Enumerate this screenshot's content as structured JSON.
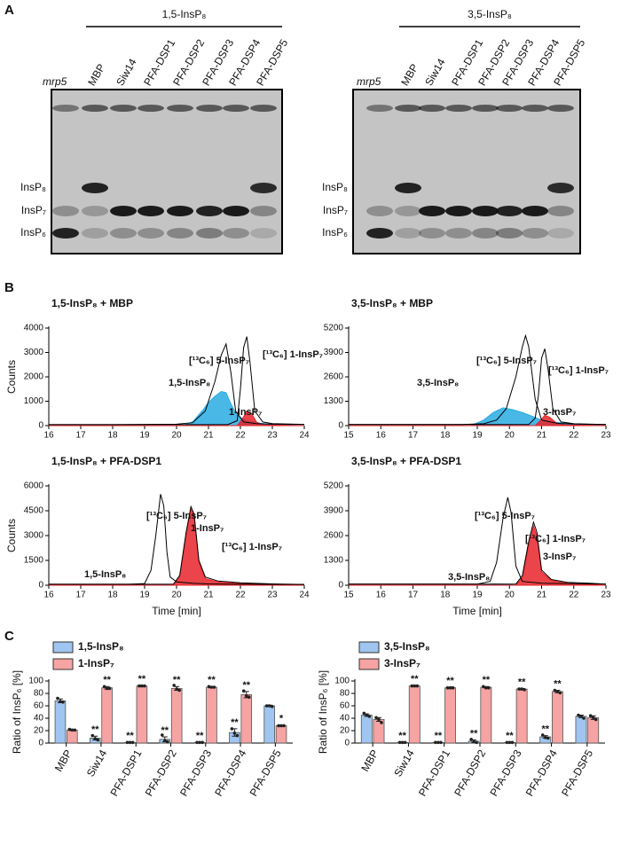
{
  "panel_labels": {
    "a": "A",
    "b": "B",
    "c": "C"
  },
  "gels": [
    {
      "group": "1,5-InsP₈",
      "lanes": [
        "mrp5",
        "MBP",
        "Siw14",
        "PFA-DSP1",
        "PFA-DSP2",
        "PFA-DSP3",
        "PFA-DSP4",
        "PFA-DSP5"
      ],
      "bands": [
        "InsP₈",
        "InsP₇",
        "InsP₆"
      ]
    },
    {
      "group": "3,5-InsP₈",
      "lanes": [
        "mrp5",
        "MBP",
        "Siw14",
        "PFA-DSP1",
        "PFA-DSP2",
        "PFA-DSP3",
        "PFA-DSP4",
        "PFA-DSP5"
      ],
      "bands": [
        "InsP₈",
        "InsP₇",
        "InsP₆"
      ]
    }
  ],
  "chart_data": [
    {
      "type": "line",
      "title": "1,5-InsP₈ + MBP",
      "ylabel": "Counts",
      "xlim": [
        16,
        24
      ],
      "xticks": [
        16,
        17,
        18,
        19,
        20,
        21,
        22,
        23,
        24
      ],
      "ylim": [
        0,
        4000
      ],
      "yticks": [
        0,
        1000,
        2000,
        3000,
        4000
      ],
      "series": [
        {
          "name": "[¹³C₆] 5-InsP₇",
          "color": "#000000",
          "filled": false,
          "x": [
            16,
            18,
            19,
            20,
            20.5,
            20.9,
            21.2,
            21.4,
            21.55,
            21.7,
            21.85,
            22.1,
            22.5,
            23,
            24
          ],
          "values": [
            40,
            40,
            50,
            60,
            120,
            600,
            1800,
            2900,
            3350,
            2200,
            600,
            150,
            80,
            60,
            50
          ]
        },
        {
          "name": "[¹³C₆] 1-InsP₇",
          "color": "#000000",
          "filled": false,
          "x": [
            16,
            21.6,
            21.9,
            22.0,
            22.1,
            22.2,
            22.3,
            22.45,
            22.7,
            23,
            24
          ],
          "values": [
            40,
            40,
            200,
            1500,
            3200,
            3650,
            2600,
            600,
            150,
            80,
            50
          ]
        },
        {
          "name": "1,5-InsP₈",
          "color": "#29abe2",
          "filled": true,
          "x": [
            16,
            20.2,
            20.5,
            20.8,
            21.0,
            21.2,
            21.4,
            21.55,
            21.7,
            21.9,
            22.2,
            22.6,
            23,
            24
          ],
          "values": [
            0,
            0,
            150,
            600,
            950,
            1200,
            1400,
            1350,
            900,
            400,
            200,
            100,
            40,
            0
          ]
        },
        {
          "name": "1-InsP₇",
          "color": "#e8232a",
          "filled": true,
          "x": [
            16,
            21.9,
            22.05,
            22.2,
            22.35,
            22.5,
            22.7,
            24
          ],
          "values": [
            0,
            0,
            250,
            600,
            500,
            150,
            30,
            0
          ]
        }
      ]
    },
    {
      "type": "line",
      "title": "3,5-InsP₈ + MBP",
      "xlim": [
        15,
        23
      ],
      "xticks": [
        15,
        16,
        17,
        18,
        19,
        20,
        21,
        22,
        23
      ],
      "ylim": [
        0,
        5200
      ],
      "yticks": [
        0,
        1300,
        2600,
        3900,
        5200
      ],
      "series": [
        {
          "name": "[¹³C₆] 5-InsP₇",
          "color": "#000000",
          "filled": false,
          "x": [
            15,
            18.5,
            19.2,
            19.6,
            19.9,
            20.2,
            20.4,
            20.5,
            20.6,
            20.8,
            21,
            21.5,
            22,
            23
          ],
          "values": [
            60,
            60,
            100,
            300,
            900,
            2600,
            4200,
            4800,
            4200,
            1400,
            300,
            120,
            80,
            60
          ]
        },
        {
          "name": "[¹³C₆] 1-InsP₇",
          "color": "#000000",
          "filled": false,
          "x": [
            15,
            20.6,
            20.8,
            20.9,
            21.0,
            21.1,
            21.2,
            21.35,
            21.6,
            22,
            23
          ],
          "values": [
            60,
            60,
            400,
            1600,
            3600,
            4100,
            3000,
            900,
            200,
            100,
            60
          ]
        },
        {
          "name": "3,5-InsP₈",
          "color": "#29abe2",
          "filled": true,
          "x": [
            15,
            18.8,
            19.2,
            19.5,
            19.8,
            20.1,
            20.4,
            20.7,
            21,
            21.3,
            21.8,
            22.5,
            23
          ],
          "values": [
            0,
            0,
            300,
            700,
            950,
            850,
            700,
            500,
            300,
            200,
            120,
            50,
            0
          ]
        },
        {
          "name": "3-InsP₇",
          "color": "#e8232a",
          "filled": true,
          "x": [
            15,
            20.8,
            20.95,
            21.1,
            21.25,
            21.45,
            21.7,
            23
          ],
          "values": [
            0,
            0,
            250,
            550,
            450,
            150,
            40,
            0
          ]
        }
      ]
    },
    {
      "type": "line",
      "title": "1,5-InsP₈ + PFA-DSP1",
      "ylabel": "Counts",
      "xlabel": "Time [min]",
      "xlim": [
        16,
        24
      ],
      "xticks": [
        16,
        17,
        18,
        19,
        20,
        21,
        22,
        23,
        24
      ],
      "ylim": [
        0,
        6000
      ],
      "yticks": [
        0,
        1500,
        3000,
        4500,
        6000
      ],
      "series": [
        {
          "name": "[¹³C₆] 5-InsP₇",
          "color": "#000000",
          "filled": false,
          "x": [
            16,
            18.5,
            19,
            19.2,
            19.35,
            19.5,
            19.6,
            19.7,
            19.8,
            20,
            20.5,
            21,
            22,
            24
          ],
          "values": [
            60,
            60,
            100,
            900,
            3000,
            5500,
            4800,
            2000,
            500,
            200,
            120,
            80,
            60,
            50
          ]
        },
        {
          "name": "[¹³C₆] 1-InsP₇",
          "color": "#000000",
          "filled": false,
          "x": [
            16,
            19.9,
            20.1,
            20.3,
            20.45,
            20.55,
            20.7,
            20.9,
            21.3,
            22,
            23,
            24
          ],
          "values": [
            60,
            60,
            600,
            3200,
            4750,
            4300,
            1500,
            500,
            250,
            150,
            80,
            50
          ]
        },
        {
          "name": "1,5-InsP₈",
          "color": "#29abe2",
          "filled": true,
          "x": [
            16,
            18.5,
            19,
            19.5,
            20,
            24
          ],
          "values": [
            0,
            0,
            60,
            40,
            0,
            0
          ]
        },
        {
          "name": "1-InsP₇",
          "color": "#e8232a",
          "filled": true,
          "x": [
            16,
            19.9,
            20.1,
            20.3,
            20.45,
            20.55,
            20.7,
            20.9,
            21.3,
            22,
            23,
            24
          ],
          "values": [
            0,
            0,
            500,
            3000,
            4600,
            4200,
            1400,
            400,
            200,
            100,
            40,
            0
          ]
        }
      ]
    },
    {
      "type": "line",
      "title": "3,5-InsP₈ + PFA-DSP1",
      "xlabel": "Time [min]",
      "xlim": [
        15,
        23
      ],
      "xticks": [
        15,
        16,
        17,
        18,
        19,
        20,
        21,
        22,
        23
      ],
      "ylim": [
        0,
        5200
      ],
      "yticks": [
        0,
        1300,
        2600,
        3900,
        5200
      ],
      "series": [
        {
          "name": "[¹³C₆] 5-InsP₇",
          "color": "#000000",
          "filled": false,
          "x": [
            15,
            19,
            19.4,
            19.6,
            19.8,
            19.95,
            20.05,
            20.2,
            20.4,
            21,
            22,
            23
          ],
          "values": [
            60,
            60,
            200,
            1200,
            3500,
            4600,
            3800,
            1000,
            200,
            100,
            80,
            60
          ]
        },
        {
          "name": "[¹³C₆] 1-InsP₇",
          "color": "#000000",
          "filled": false,
          "x": [
            15,
            20.2,
            20.4,
            20.6,
            20.75,
            20.85,
            21,
            21.3,
            21.8,
            22.5,
            23
          ],
          "values": [
            60,
            60,
            500,
            2300,
            3300,
            2800,
            800,
            300,
            150,
            100,
            60
          ]
        },
        {
          "name": "3,5-InsP₈",
          "color": "#29abe2",
          "filled": true,
          "x": [
            15,
            19,
            19.5,
            19.9,
            20.2,
            23
          ],
          "values": [
            0,
            0,
            70,
            50,
            0,
            0
          ]
        },
        {
          "name": "3-InsP₇",
          "color": "#e8232a",
          "filled": true,
          "x": [
            15,
            20.2,
            20.4,
            20.6,
            20.75,
            20.85,
            21,
            21.3,
            21.8,
            22.5,
            23
          ],
          "values": [
            0,
            0,
            400,
            2100,
            3100,
            2600,
            700,
            250,
            100,
            40,
            0
          ]
        }
      ]
    },
    {
      "type": "bar",
      "ylabel": "Ratio of InsP₆ [%]",
      "legend": "top-left",
      "categories": [
        "MBP",
        "Siw14",
        "PFA-DSP1",
        "PFA-DSP2",
        "PFA-DSP3",
        "PFA-DSP4",
        "PFA-DSP5"
      ],
      "ylim": [
        0,
        100
      ],
      "yticks": [
        0,
        20,
        40,
        60,
        80,
        100
      ],
      "series": [
        {
          "name": "1,5-InsP₈",
          "color": "#9fc5f0",
          "values": [
            68,
            8,
            1,
            6,
            1,
            17,
            60
          ],
          "errors": [
            3,
            3,
            0.5,
            4,
            0.5,
            6,
            1
          ],
          "points": [
            [
              72,
              67,
              66
            ],
            [
              12,
              7,
              5
            ],
            [
              1,
              1,
              1
            ],
            [
              13,
              4,
              2
            ],
            [
              1,
              1,
              1
            ],
            [
              23,
              16,
              12
            ],
            [
              60,
              60,
              59
            ]
          ],
          "significance": [
            null,
            "**",
            "**",
            "**",
            "**",
            "**",
            null
          ]
        },
        {
          "name": "1-InsP₇",
          "color": "#f6a3a3",
          "values": [
            21,
            89,
            92,
            88,
            90,
            78,
            28
          ],
          "errors": [
            1,
            2,
            1,
            3,
            1,
            5,
            1
          ],
          "points": [
            [
              22,
              21,
              21
            ],
            [
              91,
              88,
              88
            ],
            [
              92,
              92,
              92
            ],
            [
              93,
              87,
              85
            ],
            [
              91,
              90,
              90
            ],
            [
              84,
              76,
              74
            ],
            [
              28,
              28,
              28
            ]
          ],
          "significance": [
            null,
            "**",
            "**",
            "**",
            "**",
            "**",
            "*"
          ]
        }
      ]
    },
    {
      "type": "bar",
      "ylabel": "Ratio of InsP₆ [%]",
      "legend": "top-left",
      "categories": [
        "MBP",
        "Siw14",
        "PFA-DSP1",
        "PFA-DSP2",
        "PFA-DSP3",
        "PFA-DSP4",
        "PFA-DSP5"
      ],
      "ylim": [
        0,
        100
      ],
      "yticks": [
        0,
        20,
        40,
        60,
        80,
        100
      ],
      "series": [
        {
          "name": "3,5-InsP₈",
          "color": "#9fc5f0",
          "values": [
            45,
            1,
            1,
            3,
            1,
            10,
            43
          ],
          "errors": [
            2,
            0.5,
            0.5,
            2,
            0.5,
            2,
            2
          ],
          "points": [
            [
              48,
              45,
              43
            ],
            [
              1,
              1,
              1
            ],
            [
              1,
              1,
              1
            ],
            [
              6,
              2,
              1
            ],
            [
              1,
              1,
              1
            ],
            [
              13,
              9,
              8
            ],
            [
              45,
              43,
              40
            ]
          ],
          "significance": [
            null,
            "**",
            "**",
            "**",
            "**",
            "**",
            null
          ]
        },
        {
          "name": "3-InsP₇",
          "color": "#f6a3a3",
          "values": [
            38,
            92,
            89,
            90,
            87,
            83,
            41
          ],
          "errors": [
            3,
            1,
            1,
            1,
            1,
            2,
            3
          ],
          "points": [
            [
              41,
              38,
              33
            ],
            [
              92,
              92,
              92
            ],
            [
              89,
              89,
              89
            ],
            [
              91,
              89,
              89
            ],
            [
              87,
              87,
              86
            ],
            [
              85,
              83,
              81
            ],
            [
              44,
              41,
              38
            ]
          ],
          "significance": [
            null,
            "**",
            "**",
            "**",
            "**",
            "**",
            null
          ]
        }
      ]
    }
  ]
}
